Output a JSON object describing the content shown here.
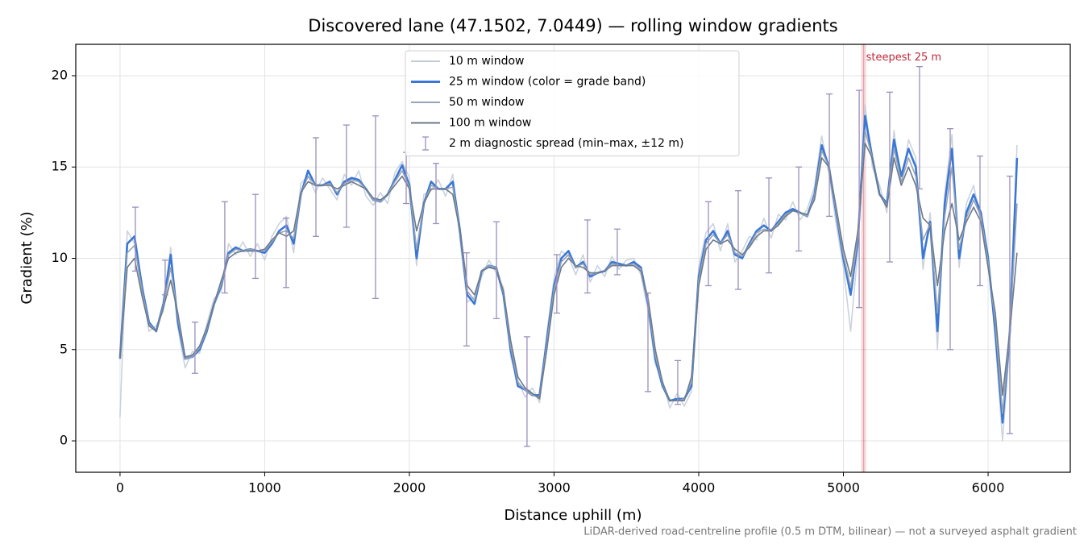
{
  "chart_data": {
    "type": "line",
    "title": "Discovered lane (47.1502, 7.0449) — rolling window gradients",
    "x_label": "Distance uphill (m)",
    "y_label": "Gradient (%)",
    "footnote": "LiDAR-derived road-centreline profile (0.5 m DTM, bilinear) — not a surveyed asphalt gradient",
    "xlim": [
      -306,
      6568
    ],
    "ylim": [
      -1.72,
      21.72
    ],
    "xticks": [
      0,
      1000,
      2000,
      3000,
      4000,
      5000,
      6000
    ],
    "yticks": [
      0,
      5,
      10,
      15,
      20
    ],
    "grid": true,
    "legend": "upper center",
    "x": [
      0,
      50,
      100,
      150,
      200,
      250,
      300,
      350,
      400,
      450,
      500,
      550,
      600,
      650,
      700,
      750,
      800,
      850,
      900,
      950,
      1000,
      1050,
      1100,
      1150,
      1200,
      1250,
      1300,
      1350,
      1400,
      1450,
      1500,
      1550,
      1600,
      1650,
      1700,
      1750,
      1800,
      1850,
      1900,
      1950,
      2000,
      2050,
      2100,
      2150,
      2200,
      2250,
      2300,
      2350,
      2400,
      2450,
      2500,
      2550,
      2600,
      2650,
      2700,
      2750,
      2800,
      2850,
      2900,
      2950,
      3000,
      3050,
      3100,
      3150,
      3200,
      3250,
      3300,
      3350,
      3400,
      3450,
      3500,
      3550,
      3600,
      3650,
      3700,
      3750,
      3800,
      3850,
      3900,
      3950,
      4000,
      4050,
      4100,
      4150,
      4200,
      4250,
      4300,
      4350,
      4400,
      4450,
      4500,
      4550,
      4600,
      4650,
      4700,
      4750,
      4800,
      4850,
      4900,
      4950,
      5000,
      5050,
      5100,
      5150,
      5200,
      5250,
      5300,
      5350,
      5400,
      5450,
      5500,
      5550,
      5600,
      5650,
      5700,
      5750,
      5800,
      5850,
      5900,
      5950,
      6000,
      6050,
      6100,
      6150,
      6200
    ],
    "series": [
      {
        "name": "10 m window",
        "color": "#c3cbd7",
        "values": [
          1.3,
          11.5,
          10.8,
          8.8,
          6.0,
          6.3,
          7.1,
          10.6,
          6.2,
          4.0,
          4.9,
          4.8,
          6.4,
          7.8,
          8.2,
          10.8,
          10.2,
          10.9,
          10.1,
          10.8,
          9.9,
          11.2,
          11.9,
          12.3,
          10.3,
          14.1,
          14.5,
          13.6,
          14.4,
          13.8,
          13.2,
          14.6,
          14.0,
          14.8,
          13.4,
          12.9,
          13.6,
          13.0,
          14.7,
          15.3,
          14.4,
          9.6,
          13.5,
          13.7,
          14.3,
          13.4,
          14.6,
          11.0,
          7.6,
          7.9,
          9.0,
          9.9,
          9.2,
          8.4,
          4.6,
          3.3,
          2.4,
          2.9,
          2.1,
          5.9,
          8.9,
          10.4,
          10.1,
          9.1,
          10.2,
          8.7,
          9.6,
          9.0,
          10.1,
          9.4,
          9.9,
          10.0,
          9.1,
          7.1,
          4.2,
          3.3,
          1.8,
          2.6,
          1.9,
          2.7,
          9.5,
          11.4,
          11.9,
          10.4,
          11.9,
          9.8,
          10.4,
          11.2,
          11.0,
          12.2,
          11.1,
          12.4,
          12.1,
          13.1,
          12.1,
          12.7,
          13.9,
          16.7,
          14.6,
          11.9,
          9.5,
          6.0,
          10.5,
          18.4,
          15.0,
          14.0,
          12.5,
          17.0,
          14.0,
          16.5,
          15.5,
          9.4,
          12.5,
          5.0,
          13.5,
          16.8,
          9.5,
          13.0,
          14.0,
          12.0,
          10.3,
          5.5,
          0.0,
          5.5,
          16.2
        ]
      },
      {
        "name": "25 m window (color = grade band)",
        "color": "#3a77d6",
        "values": [
          4.5,
          10.8,
          11.2,
          8.5,
          6.5,
          6.0,
          7.5,
          10.2,
          6.5,
          4.5,
          4.6,
          5.0,
          6.0,
          7.5,
          8.5,
          10.3,
          10.6,
          10.4,
          10.5,
          10.4,
          10.3,
          10.8,
          11.5,
          11.8,
          10.8,
          13.5,
          14.8,
          14.0,
          14.0,
          14.2,
          13.5,
          14.2,
          14.4,
          14.3,
          13.8,
          13.2,
          13.1,
          13.5,
          14.3,
          15.1,
          14.0,
          10.0,
          13.0,
          14.2,
          13.8,
          13.8,
          14.2,
          11.5,
          8.0,
          7.5,
          9.3,
          9.6,
          9.5,
          8.0,
          5.0,
          3.0,
          2.8,
          2.5,
          2.5,
          5.5,
          8.5,
          10.0,
          10.4,
          9.5,
          9.8,
          9.0,
          9.2,
          9.3,
          9.8,
          9.7,
          9.6,
          9.8,
          9.5,
          7.5,
          4.5,
          3.0,
          2.2,
          2.3,
          2.3,
          3.0,
          9.0,
          11.0,
          11.5,
          10.8,
          11.5,
          10.2,
          10.0,
          10.8,
          11.5,
          11.8,
          11.5,
          12.0,
          12.5,
          12.7,
          12.5,
          12.3,
          13.5,
          16.2,
          15.0,
          12.5,
          10.0,
          8.0,
          11.0,
          17.8,
          15.5,
          13.5,
          13.0,
          16.5,
          14.5,
          16.0,
          15.0,
          10.0,
          12.0,
          6.0,
          13.0,
          16.0,
          10.0,
          12.5,
          13.5,
          12.5,
          10.0,
          6.0,
          1.0,
          6.0,
          15.5
        ]
      },
      {
        "name": "50 m window",
        "color": "#97a5b6",
        "values": [
          4.5,
          10.3,
          10.7,
          8.3,
          6.4,
          6.0,
          7.4,
          9.5,
          6.8,
          4.5,
          4.6,
          5.1,
          6.1,
          7.5,
          8.6,
          10.2,
          10.5,
          10.4,
          10.5,
          10.4,
          10.4,
          10.9,
          11.4,
          11.5,
          11.1,
          13.5,
          14.5,
          14.0,
          14.0,
          14.1,
          13.6,
          14.1,
          14.3,
          14.2,
          13.8,
          13.2,
          13.1,
          13.5,
          14.2,
          14.8,
          13.9,
          10.5,
          13.0,
          14.0,
          13.8,
          13.8,
          13.9,
          11.5,
          8.2,
          7.7,
          9.3,
          9.6,
          9.5,
          8.1,
          5.2,
          3.2,
          2.8,
          2.5,
          2.4,
          5.3,
          8.3,
          9.8,
          10.2,
          9.5,
          9.7,
          9.1,
          9.2,
          9.3,
          9.7,
          9.6,
          9.6,
          9.7,
          9.4,
          7.6,
          4.7,
          3.1,
          2.2,
          2.2,
          2.3,
          3.2,
          8.8,
          10.8,
          11.3,
          10.8,
          11.3,
          10.3,
          10.1,
          10.7,
          11.4,
          11.6,
          11.5,
          11.9,
          12.4,
          12.6,
          12.5,
          12.3,
          13.4,
          15.9,
          15.0,
          12.6,
          10.2,
          8.4,
          11.2,
          17.0,
          15.5,
          13.5,
          12.9,
          16.0,
          14.2,
          15.5,
          14.5,
          11.0,
          11.9,
          7.0,
          12.3,
          15.0,
          10.5,
          12.2,
          13.2,
          12.3,
          9.8,
          6.5,
          1.5,
          6.0,
          13.0
        ]
      },
      {
        "name": "100 m window",
        "color": "#6c7a8b",
        "values": [
          4.5,
          9.5,
          10.0,
          8.0,
          6.3,
          6.0,
          7.3,
          8.8,
          7.0,
          4.6,
          4.7,
          5.2,
          6.2,
          7.5,
          8.8,
          10.0,
          10.3,
          10.4,
          10.4,
          10.4,
          10.5,
          11.0,
          11.4,
          11.2,
          11.5,
          13.6,
          14.2,
          14.0,
          14.0,
          14.0,
          13.8,
          14.0,
          14.2,
          14.0,
          13.8,
          13.3,
          13.2,
          13.5,
          14.0,
          14.5,
          13.8,
          11.5,
          13.0,
          13.8,
          13.8,
          13.8,
          13.5,
          11.5,
          8.5,
          8.0,
          9.3,
          9.5,
          9.4,
          8.2,
          5.5,
          3.5,
          2.9,
          2.6,
          2.3,
          5.0,
          8.0,
          9.5,
          10.0,
          9.6,
          9.5,
          9.2,
          9.2,
          9.3,
          9.6,
          9.6,
          9.6,
          9.6,
          9.3,
          7.8,
          5.0,
          3.2,
          2.2,
          2.2,
          2.2,
          3.5,
          8.5,
          10.5,
          11.0,
          10.8,
          11.0,
          10.5,
          10.2,
          10.6,
          11.2,
          11.5,
          11.5,
          11.8,
          12.3,
          12.6,
          12.5,
          12.4,
          13.2,
          15.5,
          15.0,
          12.8,
          10.5,
          9.0,
          11.5,
          16.3,
          15.5,
          13.5,
          12.8,
          15.5,
          14.0,
          15.0,
          14.0,
          12.2,
          11.8,
          8.5,
          11.5,
          13.0,
          11.0,
          12.0,
          12.8,
          12.0,
          9.5,
          7.0,
          2.5,
          6.0,
          10.3
        ]
      }
    ],
    "errorbars": {
      "name": "2 m diagnostic spread (min–max, ±12 m)",
      "color": "#9b8fbc",
      "x": [
        106,
        312,
        518,
        724,
        936,
        1148,
        1354,
        1565,
        1766,
        1978,
        2184,
        2395,
        2602,
        2813,
        3019,
        3231,
        3437,
        3649,
        3855,
        4067,
        4273,
        4485,
        4691,
        4903,
        5109,
        5320,
        5526,
        5738,
        5944,
        6150
      ],
      "low": [
        9.3,
        8.0,
        3.7,
        8.1,
        8.9,
        8.4,
        11.2,
        11.7,
        7.8,
        13.0,
        11.9,
        5.2,
        6.7,
        -0.3,
        7.0,
        8.1,
        9.1,
        2.7,
        2.0,
        8.5,
        8.3,
        9.2,
        10.4,
        12.3,
        7.3,
        9.8,
        13.8,
        5.0,
        8.5,
        0.4
      ],
      "high": [
        12.8,
        9.9,
        6.5,
        13.1,
        13.5,
        12.2,
        16.6,
        17.3,
        17.8,
        15.8,
        15.2,
        10.3,
        12.0,
        5.7,
        10.2,
        12.1,
        11.6,
        8.1,
        4.4,
        13.1,
        13.7,
        14.4,
        15.0,
        19.0,
        19.2,
        19.1,
        20.5,
        17.1,
        15.6,
        14.5
      ]
    },
    "annotation": {
      "text": "steepest 25 m",
      "x": 5140,
      "y": 21.0,
      "color": "#c0283a"
    }
  }
}
